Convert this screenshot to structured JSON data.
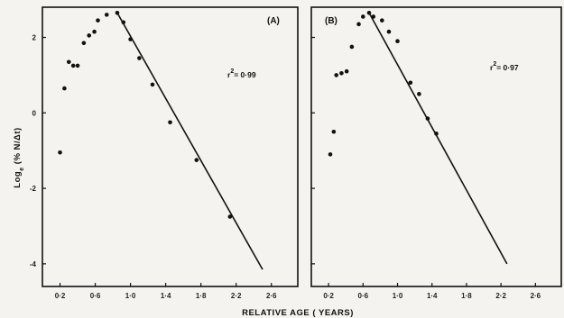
{
  "chart_data": [
    {
      "type": "scatter",
      "panel_label": "(A)",
      "annotation": {
        "prefix": "r",
        "superscript": "2",
        "value": "= 0·99"
      },
      "x_tick_labels": [
        "0·2",
        "0·6",
        "1·0",
        "1·4",
        "1·8",
        "2·2",
        "2·6"
      ],
      "y_tick_labels": [
        "2",
        "0",
        "-2",
        "-4"
      ],
      "xlim": [
        0,
        2.9
      ],
      "ylim": [
        -4.6,
        2.8
      ],
      "series": [
        {
          "points": [
            {
              "x": 0.2,
              "y": -1.05
            },
            {
              "x": 0.25,
              "y": 0.65
            },
            {
              "x": 0.3,
              "y": 1.35
            },
            {
              "x": 0.35,
              "y": 1.25
            },
            {
              "x": 0.4,
              "y": 1.25
            },
            {
              "x": 0.47,
              "y": 1.85
            },
            {
              "x": 0.53,
              "y": 2.05
            },
            {
              "x": 0.59,
              "y": 2.15
            },
            {
              "x": 0.63,
              "y": 2.45
            },
            {
              "x": 0.73,
              "y": 2.6
            },
            {
              "x": 0.85,
              "y": 2.65
            },
            {
              "x": 0.92,
              "y": 2.4
            },
            {
              "x": 1.0,
              "y": 1.95
            },
            {
              "x": 1.1,
              "y": 1.45
            },
            {
              "x": 1.25,
              "y": 0.75
            },
            {
              "x": 1.45,
              "y": -0.25
            },
            {
              "x": 1.75,
              "y": -1.25
            },
            {
              "x": 2.13,
              "y": -2.75
            }
          ]
        }
      ],
      "fit_line": {
        "x": [
          0.85,
          2.5
        ],
        "y": [
          2.65,
          -4.15
        ]
      }
    },
    {
      "type": "scatter",
      "panel_label": "(B)",
      "annotation": {
        "prefix": "r",
        "superscript": "2",
        "value": "= 0·97"
      },
      "x_tick_labels": [
        "0·2",
        "0·6",
        "1·0",
        "1·4",
        "1·8",
        "2·2",
        "2·6"
      ],
      "y_tick_labels": [
        "",
        "",
        "",
        ""
      ],
      "xlim": [
        0,
        2.9
      ],
      "ylim": [
        -4.6,
        2.8
      ],
      "series": [
        {
          "points": [
            {
              "x": 0.22,
              "y": -1.1
            },
            {
              "x": 0.26,
              "y": -0.5
            },
            {
              "x": 0.29,
              "y": 1.0
            },
            {
              "x": 0.35,
              "y": 1.05
            },
            {
              "x": 0.41,
              "y": 1.1
            },
            {
              "x": 0.47,
              "y": 1.75
            },
            {
              "x": 0.55,
              "y": 2.35
            },
            {
              "x": 0.6,
              "y": 2.55
            },
            {
              "x": 0.67,
              "y": 2.65
            },
            {
              "x": 0.72,
              "y": 2.55
            },
            {
              "x": 0.82,
              "y": 2.45
            },
            {
              "x": 0.9,
              "y": 2.15
            },
            {
              "x": 1.0,
              "y": 1.9
            },
            {
              "x": 1.15,
              "y": 0.8
            },
            {
              "x": 1.25,
              "y": 0.5
            },
            {
              "x": 1.35,
              "y": -0.15
            },
            {
              "x": 1.45,
              "y": -0.55
            }
          ]
        }
      ],
      "fit_line": {
        "x": [
          0.67,
          2.27
        ],
        "y": [
          2.65,
          -4.0
        ]
      }
    }
  ],
  "y_axis_label": {
    "main": "Log",
    "subscript": "e",
    "rest": " (% N/Δt)"
  },
  "x_axis_label": "RELATIVE AGE ( YEARS)"
}
